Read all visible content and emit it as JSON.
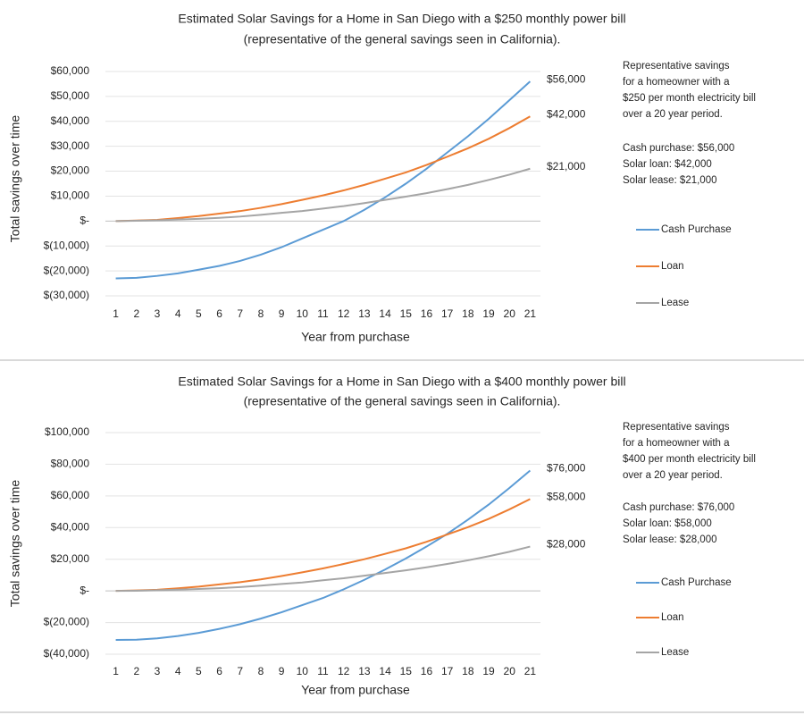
{
  "chart_data": [
    {
      "type": "line",
      "title": "Estimated Solar Savings for a Home in San Diego with a $250 monthly power bill",
      "subtitle": "(representative of the general savings seen in California).",
      "x_label": "Year from purchase",
      "y_label": "Total savings over time",
      "categories": [
        1,
        2,
        3,
        4,
        5,
        6,
        7,
        8,
        9,
        10,
        11,
        12,
        13,
        14,
        15,
        16,
        17,
        18,
        19,
        20,
        21
      ],
      "ylim": [
        -30000,
        60000
      ],
      "yticks": [
        {
          "value": -30000,
          "label": "$(30,000)"
        },
        {
          "value": -20000,
          "label": "$(20,000)"
        },
        {
          "value": -10000,
          "label": "$(10,000)"
        },
        {
          "value": 0,
          "label": "$-"
        },
        {
          "value": 10000,
          "label": "$10,000"
        },
        {
          "value": 20000,
          "label": "$20,000"
        },
        {
          "value": 30000,
          "label": "$30,000"
        },
        {
          "value": 40000,
          "label": "$40,000"
        },
        {
          "value": 50000,
          "label": "$50,000"
        },
        {
          "value": 60000,
          "label": "$60,000"
        }
      ],
      "grid": true,
      "legend": "right",
      "series": [
        {
          "name": "Cash Purchase",
          "color": "#5b9bd5",
          "values": [
            -23000,
            -22800,
            -22000,
            -21000,
            -19500,
            -18000,
            -16000,
            -13500,
            -10500,
            -7000,
            -3500,
            0,
            4500,
            9500,
            15000,
            21000,
            27500,
            34000,
            41000,
            48500,
            56000
          ],
          "value_labels": [
            null,
            null,
            null,
            null,
            null,
            null,
            null,
            null,
            null,
            null,
            null,
            null,
            null,
            null,
            null,
            null,
            null,
            null,
            null,
            null,
            "$56,000"
          ]
        },
        {
          "name": "Loan",
          "color": "#ed7d31",
          "values": [
            0,
            200,
            500,
            1200,
            2000,
            3000,
            4000,
            5300,
            6800,
            8500,
            10300,
            12300,
            14500,
            17000,
            19500,
            22500,
            25800,
            29200,
            33000,
            37300,
            42000
          ],
          "value_labels": [
            null,
            null,
            null,
            null,
            null,
            null,
            null,
            null,
            null,
            null,
            null,
            null,
            null,
            null,
            null,
            null,
            null,
            null,
            null,
            null,
            "$42,000"
          ]
        },
        {
          "name": "Lease",
          "color": "#a5a5a5",
          "values": [
            0,
            100,
            300,
            600,
            900,
            1300,
            1800,
            2500,
            3300,
            4000,
            5000,
            6000,
            7200,
            8500,
            9800,
            11200,
            12800,
            14500,
            16500,
            18600,
            21000
          ],
          "value_labels": [
            null,
            null,
            null,
            null,
            null,
            null,
            null,
            null,
            null,
            null,
            null,
            null,
            null,
            null,
            null,
            null,
            null,
            null,
            null,
            null,
            "$21,000"
          ]
        }
      ],
      "annotations": [
        "Representative savings",
        "for a homeowner with a",
        "$250 per month electricity bill",
        "over a 20 year period.",
        "Cash purchase: $56,000",
        "Solar loan: $42,000",
        "Solar lease: $21,000"
      ]
    },
    {
      "type": "line",
      "title": "Estimated Solar Savings for a Home in San Diego with a $400 monthly power bill",
      "subtitle": "(representative of the general savings seen in California).",
      "x_label": "Year from purchase",
      "y_label": "Total savings over time",
      "categories": [
        1,
        2,
        3,
        4,
        5,
        6,
        7,
        8,
        9,
        10,
        11,
        12,
        13,
        14,
        15,
        16,
        17,
        18,
        19,
        20,
        21
      ],
      "ylim": [
        -40000,
        100000
      ],
      "yticks": [
        {
          "value": -40000,
          "label": "$(40,000)"
        },
        {
          "value": -20000,
          "label": "$(20,000)"
        },
        {
          "value": 0,
          "label": "$-"
        },
        {
          "value": 20000,
          "label": "$20,000"
        },
        {
          "value": 40000,
          "label": "$40,000"
        },
        {
          "value": 60000,
          "label": "$60,000"
        },
        {
          "value": 80000,
          "label": "$80,000"
        },
        {
          "value": 100000,
          "label": "$100,000"
        }
      ],
      "grid": true,
      "legend": "right",
      "series": [
        {
          "name": "Cash Purchase",
          "color": "#5b9bd5",
          "values": [
            -31000,
            -30800,
            -30000,
            -28500,
            -26500,
            -24000,
            -21000,
            -17500,
            -13500,
            -9000,
            -4500,
            1000,
            7000,
            13500,
            20500,
            28000,
            36000,
            45000,
            54500,
            65000,
            76000
          ],
          "value_labels": [
            null,
            null,
            null,
            null,
            null,
            null,
            null,
            null,
            null,
            null,
            null,
            null,
            null,
            null,
            null,
            null,
            null,
            null,
            null,
            null,
            "$76,000"
          ]
        },
        {
          "name": "Loan",
          "color": "#ed7d31",
          "values": [
            0,
            300,
            700,
            1600,
            2700,
            4100,
            5500,
            7300,
            9400,
            11700,
            14200,
            17000,
            20000,
            23400,
            26900,
            31000,
            35600,
            40300,
            45500,
            51500,
            58000
          ],
          "value_labels": [
            null,
            null,
            null,
            null,
            null,
            null,
            null,
            null,
            null,
            null,
            null,
            null,
            null,
            null,
            null,
            null,
            null,
            null,
            null,
            null,
            "$58,000"
          ]
        },
        {
          "name": "Lease",
          "color": "#a5a5a5",
          "values": [
            0,
            100,
            400,
            800,
            1200,
            1700,
            2400,
            3300,
            4400,
            5300,
            6700,
            8000,
            9600,
            11300,
            13000,
            14900,
            17000,
            19300,
            21900,
            24700,
            28000
          ],
          "value_labels": [
            null,
            null,
            null,
            null,
            null,
            null,
            null,
            null,
            null,
            null,
            null,
            null,
            null,
            null,
            null,
            null,
            null,
            null,
            null,
            null,
            "$28,000"
          ]
        }
      ],
      "annotations": [
        "Representative savings",
        "for a homeowner with a",
        "$400 per month electricity bill",
        "over a 20 year period.",
        "Cash purchase: $76,000",
        "Solar loan: $58,000",
        "Solar lease: $28,000"
      ]
    }
  ]
}
